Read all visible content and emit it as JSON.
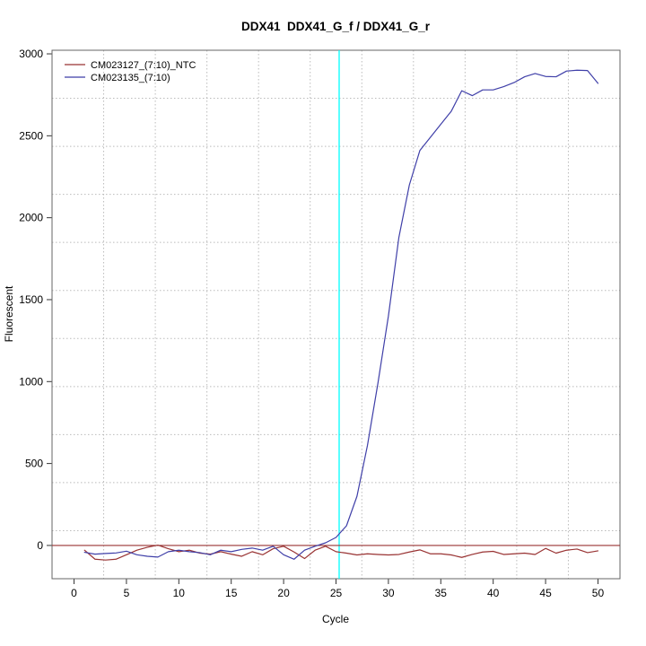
{
  "window": {
    "background": "#ffffff"
  },
  "colors": {
    "ntc_line": "#993333",
    "sample_line": "#3F3FA8",
    "threshold_line": "#993333",
    "ct_marker_line": "#00FFFF",
    "gridline": "#BBBBBB",
    "panel_border": "#666666",
    "tick": "#333333",
    "text": "#000000"
  },
  "chart_data": {
    "type": "line",
    "title": "DDX41  DDX41_G_f / DDX41_G_r",
    "xlabel": "Cycle",
    "ylabel": "Fluorescent",
    "xlim": [
      -2.1,
      52.1
    ],
    "ylim": [
      -203,
      3022
    ],
    "xticks": [
      0,
      5,
      10,
      15,
      20,
      25,
      30,
      35,
      40,
      45,
      50
    ],
    "yticks": [
      0,
      500,
      1000,
      1500,
      2000,
      2500,
      3000
    ],
    "grid": {
      "style": "dotted",
      "nx": 11,
      "ny": 11
    },
    "legend_position": "top-left",
    "threshold_y": 0,
    "threshold_cycle": 25.3,
    "x_start": 1,
    "series": [
      {
        "name": "CM023127_(7:10)_NTC",
        "color": "#993333",
        "values": [
          -29,
          -84,
          -89,
          -84,
          -57,
          -29,
          -11,
          2,
          -20,
          -38,
          -29,
          -47,
          -53,
          -38,
          -53,
          -66,
          -38,
          -57,
          -20,
          -5,
          -40,
          -80,
          -29,
          -5,
          -38,
          -47,
          -58,
          -51,
          -55,
          -58,
          -55,
          -40,
          -27,
          -51,
          -51,
          -58,
          -73,
          -55,
          -40,
          -36,
          -55,
          -51,
          -47,
          -55,
          -18,
          -47,
          -29,
          -22,
          -44,
          -33
        ]
      },
      {
        "name": "CM023135_(7:10)",
        "color": "#3F3FA8",
        "values": [
          -42,
          -53,
          -49,
          -46,
          -35,
          -57,
          -66,
          -71,
          -38,
          -29,
          -38,
          -44,
          -57,
          -29,
          -38,
          -24,
          -16,
          -29,
          -5,
          -57,
          -84,
          -29,
          -5,
          16,
          49,
          120,
          300,
          610,
          990,
          1400,
          1880,
          2200,
          2410,
          2490,
          2570,
          2650,
          2775,
          2745,
          2780,
          2780,
          2800,
          2825,
          2860,
          2880,
          2862,
          2860,
          2895,
          2900,
          2898,
          2820
        ]
      }
    ]
  }
}
